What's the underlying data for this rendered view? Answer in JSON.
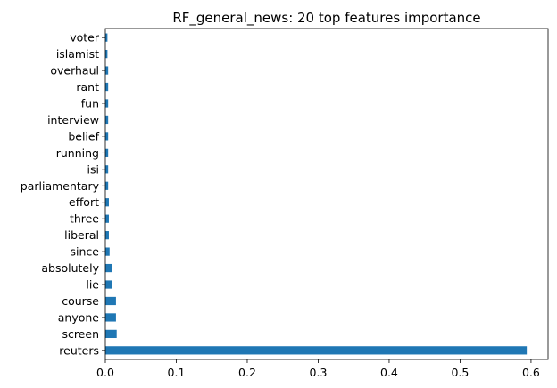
{
  "chart_data": {
    "type": "bar",
    "orientation": "horizontal",
    "title": "RF_general_news: 20 top features importance",
    "xlabel": "",
    "ylabel": "",
    "categories": [
      "reuters",
      "screen",
      "anyone",
      "course",
      "lie",
      "absolutely",
      "since",
      "liberal",
      "three",
      "effort",
      "parliamentary",
      "isi",
      "running",
      "belief",
      "interview",
      "fun",
      "rant",
      "overhaul",
      "islamist",
      "voter"
    ],
    "values": [
      0.594,
      0.016,
      0.015,
      0.015,
      0.009,
      0.009,
      0.006,
      0.005,
      0.005,
      0.005,
      0.004,
      0.004,
      0.004,
      0.004,
      0.004,
      0.004,
      0.004,
      0.004,
      0.003,
      0.003
    ],
    "xlim": [
      0,
      0.624
    ],
    "xticks": [
      "0.0",
      "0.1",
      "0.2",
      "0.3",
      "0.4",
      "0.5",
      "0.6"
    ],
    "bar_color": "#1f77b4",
    "grid": false,
    "legend": false
  }
}
